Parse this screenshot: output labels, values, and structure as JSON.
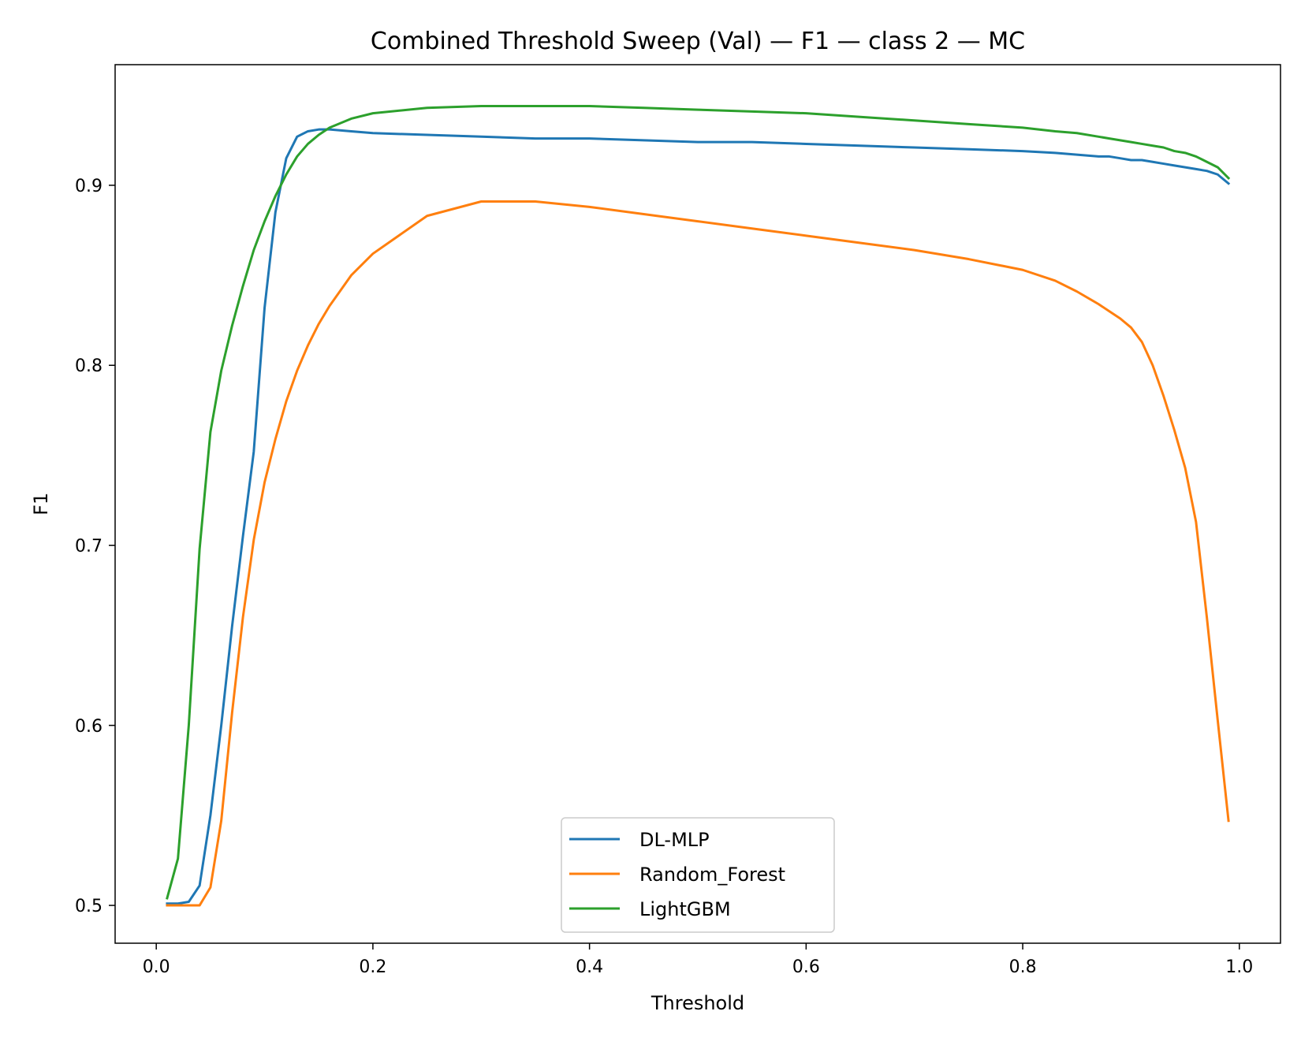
{
  "chart_data": {
    "type": "line",
    "title": "Combined Threshold Sweep (Val) — F1 — class 2 — MC",
    "xlabel": "Threshold",
    "ylabel": "F1",
    "xlim": [
      -0.038,
      1.038
    ],
    "ylim": [
      0.479,
      0.967
    ],
    "xticks": [
      "0.0",
      "0.2",
      "0.4",
      "0.6",
      "0.8",
      "1.0"
    ],
    "yticks": [
      "0.5",
      "0.6",
      "0.7",
      "0.8",
      "0.9"
    ],
    "grid": false,
    "legend_position": "lower-center",
    "x": [
      0.01,
      0.02,
      0.03,
      0.04,
      0.05,
      0.06,
      0.07,
      0.08,
      0.09,
      0.1,
      0.11,
      0.12,
      0.13,
      0.14,
      0.15,
      0.16,
      0.18,
      0.2,
      0.25,
      0.3,
      0.35,
      0.4,
      0.45,
      0.5,
      0.55,
      0.6,
      0.65,
      0.7,
      0.75,
      0.8,
      0.83,
      0.85,
      0.87,
      0.88,
      0.89,
      0.9,
      0.91,
      0.92,
      0.93,
      0.94,
      0.95,
      0.96,
      0.97,
      0.98,
      0.99
    ],
    "series": [
      {
        "name": "DL-MLP",
        "color": "#1f77b4",
        "values": [
          0.501,
          0.501,
          0.502,
          0.511,
          0.55,
          0.6,
          0.655,
          0.705,
          0.752,
          0.832,
          0.885,
          0.915,
          0.927,
          0.93,
          0.931,
          0.931,
          0.93,
          0.929,
          0.928,
          0.927,
          0.926,
          0.926,
          0.925,
          0.924,
          0.924,
          0.923,
          0.922,
          0.921,
          0.92,
          0.919,
          0.918,
          0.917,
          0.916,
          0.916,
          0.915,
          0.914,
          0.914,
          0.913,
          0.912,
          0.911,
          0.91,
          0.909,
          0.908,
          0.906,
          0.901
        ]
      },
      {
        "name": "Random_Forest",
        "color": "#ff7f0e",
        "values": [
          0.5,
          0.5,
          0.5,
          0.5,
          0.51,
          0.547,
          0.607,
          0.66,
          0.703,
          0.735,
          0.759,
          0.78,
          0.797,
          0.811,
          0.823,
          0.833,
          0.85,
          0.862,
          0.883,
          0.891,
          0.891,
          0.888,
          0.884,
          0.88,
          0.876,
          0.872,
          0.868,
          0.864,
          0.859,
          0.853,
          0.847,
          0.841,
          0.834,
          0.83,
          0.826,
          0.821,
          0.813,
          0.8,
          0.783,
          0.764,
          0.743,
          0.713,
          0.66,
          0.603,
          0.547
        ]
      },
      {
        "name": "LightGBM",
        "color": "#2ca02c",
        "values": [
          0.504,
          0.526,
          0.6,
          0.698,
          0.763,
          0.797,
          0.822,
          0.844,
          0.864,
          0.88,
          0.894,
          0.906,
          0.916,
          0.923,
          0.928,
          0.932,
          0.937,
          0.94,
          0.943,
          0.944,
          0.944,
          0.944,
          0.943,
          0.942,
          0.941,
          0.94,
          0.938,
          0.936,
          0.934,
          0.932,
          0.93,
          0.929,
          0.927,
          0.926,
          0.925,
          0.924,
          0.923,
          0.922,
          0.921,
          0.919,
          0.918,
          0.916,
          0.913,
          0.91,
          0.904
        ]
      }
    ]
  }
}
